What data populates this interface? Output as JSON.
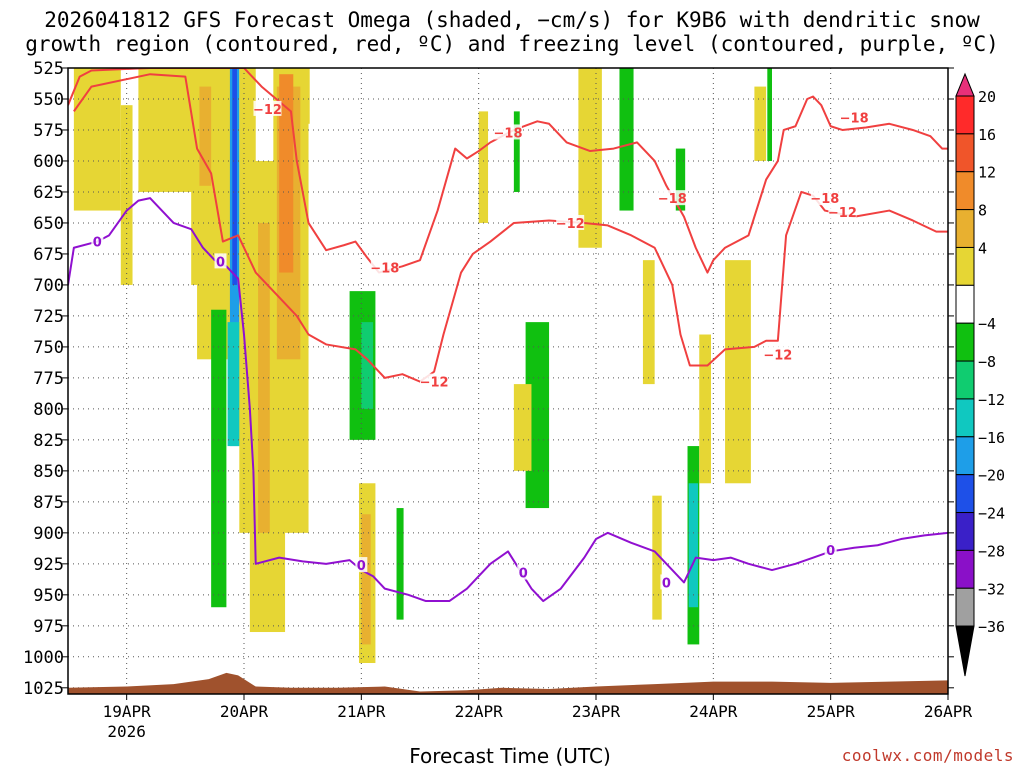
{
  "title_line1": "2026041812 GFS Forecast Omega (shaded, −cm/s) for K9B6 with dendritic snow",
  "title_line2": "growth region (contoured, red, ºC) and freezing level (contoured, purple, ºC)",
  "credit": "coolwx.com/models",
  "colors": {
    "dgz": "#f04040",
    "freezing": "#9010d0",
    "terrain": "#a0522d",
    "grid": "#555555"
  },
  "chart_data": {
    "type": "heatmap",
    "xlabel": "Forecast Time (UTC)",
    "ylabel": "",
    "x_ticks": [
      {
        "label": "19APR",
        "sub": "2026",
        "day": 19
      },
      {
        "label": "20APR",
        "sub": "",
        "day": 20
      },
      {
        "label": "21APR",
        "sub": "",
        "day": 21
      },
      {
        "label": "22APR",
        "sub": "",
        "day": 22
      },
      {
        "label": "23APR",
        "sub": "",
        "day": 23
      },
      {
        "label": "24APR",
        "sub": "",
        "day": 24
      },
      {
        "label": "25APR",
        "sub": "",
        "day": 25
      },
      {
        "label": "26APR",
        "sub": "",
        "day": 26
      }
    ],
    "xlim": [
      18.5,
      26.0
    ],
    "ylim": [
      1030,
      525
    ],
    "y_ticks": [
      525,
      550,
      575,
      600,
      625,
      650,
      675,
      700,
      725,
      750,
      775,
      800,
      825,
      850,
      875,
      900,
      925,
      950,
      975,
      1000,
      1025
    ],
    "colorbar": [
      {
        "label": "20",
        "color": "#ff2a2a"
      },
      {
        "label": "16",
        "color": "#f0552a"
      },
      {
        "label": "12",
        "color": "#f08b2a"
      },
      {
        "label": "8",
        "color": "#e8b030"
      },
      {
        "label": "4",
        "color": "#e6d634"
      },
      {
        "label": "",
        "color": "#ffffff"
      },
      {
        "label": "−4",
        "color": "#10c010"
      },
      {
        "label": "−8",
        "color": "#10cc70"
      },
      {
        "label": "−12",
        "color": "#10c8c0"
      },
      {
        "label": "−16",
        "color": "#1e9ee8"
      },
      {
        "label": "−20",
        "color": "#1e50e8"
      },
      {
        "label": "−24",
        "color": "#3a20c8"
      },
      {
        "label": "−28",
        "color": "#8a10c8"
      },
      {
        "label": "−32",
        "color": "#a0a0a0"
      },
      {
        "label": "−36",
        "color": "#000000"
      }
    ],
    "omega_patches": [
      {
        "x0": 18.55,
        "x1": 18.95,
        "p0": 525,
        "p1": 640,
        "level": 4
      },
      {
        "x0": 18.95,
        "x1": 19.05,
        "p0": 555,
        "p1": 700,
        "level": 4
      },
      {
        "x0": 19.1,
        "x1": 19.6,
        "p0": 525,
        "p1": 625,
        "level": 4
      },
      {
        "x0": 19.55,
        "x1": 19.75,
        "p0": 525,
        "p1": 700,
        "level": 4
      },
      {
        "x0": 19.6,
        "x1": 19.95,
        "p0": 525,
        "p1": 760,
        "level": 4
      },
      {
        "x0": 19.62,
        "x1": 19.72,
        "p0": 540,
        "p1": 620,
        "level": 8
      },
      {
        "x0": 19.72,
        "x1": 19.85,
        "p0": 720,
        "p1": 960,
        "level": -4
      },
      {
        "x0": 19.88,
        "x1": 19.96,
        "p0": 525,
        "p1": 830,
        "level": -16
      },
      {
        "x0": 19.9,
        "x1": 19.94,
        "p0": 525,
        "p1": 700,
        "level": -20
      },
      {
        "x0": 19.86,
        "x1": 19.98,
        "p0": 730,
        "p1": 830,
        "level": -12
      },
      {
        "x0": 19.96,
        "x1": 20.1,
        "p0": 525,
        "p1": 900,
        "level": 4
      },
      {
        "x0": 20.05,
        "x1": 20.35,
        "p0": 600,
        "p1": 980,
        "level": 4
      },
      {
        "x0": 20.12,
        "x1": 20.22,
        "p0": 650,
        "p1": 900,
        "level": 8
      },
      {
        "x0": 20.25,
        "x1": 20.55,
        "p0": 525,
        "p1": 900,
        "level": 4
      },
      {
        "x0": 20.28,
        "x1": 20.48,
        "p0": 540,
        "p1": 760,
        "level": 8
      },
      {
        "x0": 20.3,
        "x1": 20.42,
        "p0": 530,
        "p1": 690,
        "level": 12
      },
      {
        "x0": 20.5,
        "x1": 20.56,
        "p0": 525,
        "p1": 570,
        "level": 4
      },
      {
        "x0": 20.9,
        "x1": 21.12,
        "p0": 705,
        "p1": 825,
        "level": -4
      },
      {
        "x0": 21.0,
        "x1": 21.1,
        "p0": 730,
        "p1": 800,
        "level": -8
      },
      {
        "x0": 20.98,
        "x1": 21.12,
        "p0": 860,
        "p1": 1005,
        "level": 4
      },
      {
        "x0": 21.0,
        "x1": 21.08,
        "p0": 885,
        "p1": 990,
        "level": 8
      },
      {
        "x0": 21.3,
        "x1": 21.36,
        "p0": 880,
        "p1": 970,
        "level": -4
      },
      {
        "x0": 22.0,
        "x1": 22.08,
        "p0": 560,
        "p1": 650,
        "level": 4
      },
      {
        "x0": 22.3,
        "x1": 22.35,
        "p0": 560,
        "p1": 625,
        "level": -4
      },
      {
        "x0": 22.4,
        "x1": 22.6,
        "p0": 730,
        "p1": 880,
        "level": -4
      },
      {
        "x0": 22.3,
        "x1": 22.45,
        "p0": 780,
        "p1": 850,
        "level": 4
      },
      {
        "x0": 22.85,
        "x1": 23.05,
        "p0": 525,
        "p1": 670,
        "level": 4
      },
      {
        "x0": 23.2,
        "x1": 23.32,
        "p0": 525,
        "p1": 640,
        "level": -4
      },
      {
        "x0": 23.4,
        "x1": 23.5,
        "p0": 680,
        "p1": 780,
        "level": 4
      },
      {
        "x0": 23.48,
        "x1": 23.56,
        "p0": 870,
        "p1": 970,
        "level": 4
      },
      {
        "x0": 23.68,
        "x1": 23.76,
        "p0": 590,
        "p1": 640,
        "level": -4
      },
      {
        "x0": 23.78,
        "x1": 23.88,
        "p0": 830,
        "p1": 990,
        "level": -4
      },
      {
        "x0": 23.79,
        "x1": 23.87,
        "p0": 860,
        "p1": 960,
        "level": -12
      },
      {
        "x0": 23.88,
        "x1": 23.98,
        "p0": 740,
        "p1": 860,
        "level": 4
      },
      {
        "x0": 24.1,
        "x1": 24.32,
        "p0": 680,
        "p1": 860,
        "level": 4
      },
      {
        "x0": 24.35,
        "x1": 24.45,
        "p0": 540,
        "p1": 600,
        "level": 4
      },
      {
        "x0": 24.46,
        "x1": 24.5,
        "p0": 525,
        "p1": 600,
        "level": -4
      }
    ],
    "contours": [
      {
        "name": "dgz-upper",
        "label": "−18",
        "kind": "dgz",
        "points": [
          [
            18.5,
            555
          ],
          [
            18.6,
            532
          ],
          [
            18.7,
            527
          ],
          [
            19.2,
            525
          ],
          [
            20.0,
            525
          ],
          [
            20.15,
            540
          ],
          [
            20.4,
            560
          ],
          [
            20.45,
            600
          ],
          [
            20.55,
            650
          ],
          [
            20.7,
            672
          ],
          [
            20.85,
            668
          ],
          [
            20.95,
            665
          ],
          [
            21.05,
            678
          ],
          [
            21.15,
            690
          ],
          [
            21.35,
            685
          ],
          [
            21.5,
            680
          ],
          [
            21.65,
            640
          ],
          [
            21.8,
            590
          ],
          [
            21.9,
            598
          ],
          [
            22.0,
            592
          ],
          [
            22.1,
            585
          ],
          [
            22.3,
            575
          ],
          [
            22.5,
            568
          ],
          [
            22.6,
            570
          ],
          [
            22.75,
            585
          ],
          [
            22.95,
            592
          ],
          [
            23.15,
            590
          ],
          [
            23.35,
            585
          ],
          [
            23.5,
            600
          ],
          [
            23.6,
            620
          ],
          [
            23.75,
            645
          ],
          [
            23.85,
            670
          ],
          [
            23.95,
            690
          ],
          [
            24.0,
            680
          ],
          [
            24.1,
            670
          ],
          [
            24.3,
            660
          ],
          [
            24.45,
            615
          ],
          [
            24.55,
            600
          ],
          [
            24.6,
            575
          ],
          [
            24.7,
            572
          ],
          [
            24.8,
            550
          ],
          [
            24.85,
            548
          ],
          [
            24.92,
            555
          ],
          [
            25.0,
            572
          ],
          [
            25.1,
            575
          ],
          [
            25.3,
            573
          ],
          [
            25.5,
            570
          ],
          [
            25.7,
            575
          ],
          [
            25.85,
            580
          ],
          [
            25.95,
            590
          ],
          [
            26.0,
            590
          ]
        ]
      },
      {
        "name": "dgz-lower",
        "label": "−12",
        "kind": "dgz",
        "points": [
          [
            18.55,
            560
          ],
          [
            18.7,
            540
          ],
          [
            19.2,
            530
          ],
          [
            19.5,
            532
          ],
          [
            19.6,
            590
          ],
          [
            19.72,
            610
          ],
          [
            19.82,
            665
          ],
          [
            19.95,
            660
          ],
          [
            20.1,
            690
          ],
          [
            20.2,
            700
          ],
          [
            20.3,
            710
          ],
          [
            20.45,
            725
          ],
          [
            20.55,
            740
          ],
          [
            20.7,
            748
          ],
          [
            20.95,
            752
          ],
          [
            21.05,
            760
          ],
          [
            21.2,
            775
          ],
          [
            21.35,
            772
          ],
          [
            21.5,
            778
          ],
          [
            21.62,
            770
          ],
          [
            21.7,
            740
          ],
          [
            21.85,
            690
          ],
          [
            21.95,
            675
          ],
          [
            22.1,
            665
          ],
          [
            22.3,
            650
          ],
          [
            22.6,
            648
          ],
          [
            22.9,
            650
          ],
          [
            23.1,
            652
          ],
          [
            23.3,
            660
          ],
          [
            23.5,
            670
          ],
          [
            23.65,
            700
          ],
          [
            23.72,
            740
          ],
          [
            23.8,
            765
          ],
          [
            23.95,
            765
          ],
          [
            24.1,
            752
          ],
          [
            24.35,
            750
          ],
          [
            24.45,
            745
          ],
          [
            24.55,
            745
          ],
          [
            24.62,
            660
          ],
          [
            24.75,
            625
          ],
          [
            24.85,
            628
          ],
          [
            24.95,
            640
          ],
          [
            25.2,
            645
          ],
          [
            25.5,
            640
          ],
          [
            25.7,
            648
          ],
          [
            25.9,
            657
          ],
          [
            26.0,
            657
          ]
        ]
      },
      {
        "name": "freezing-upper",
        "label": "0",
        "kind": "freezing",
        "points": [
          [
            18.5,
            700
          ],
          [
            18.55,
            670
          ],
          [
            18.75,
            665
          ],
          [
            18.85,
            660
          ],
          [
            19.0,
            640
          ],
          [
            19.1,
            632
          ],
          [
            19.2,
            630
          ],
          [
            19.3,
            640
          ],
          [
            19.4,
            650
          ],
          [
            19.55,
            655
          ],
          [
            19.65,
            670
          ],
          [
            19.75,
            680
          ],
          [
            19.85,
            685
          ],
          [
            19.95,
            695
          ],
          [
            20.0,
            740
          ],
          [
            20.05,
            800
          ],
          [
            20.08,
            850
          ]
        ]
      },
      {
        "name": "freezing-lower",
        "label": "0",
        "kind": "freezing",
        "points": [
          [
            20.08,
            850
          ],
          [
            20.1,
            925
          ],
          [
            20.3,
            920
          ],
          [
            20.5,
            923
          ],
          [
            20.7,
            925
          ],
          [
            20.9,
            922
          ],
          [
            21.0,
            930
          ],
          [
            21.1,
            935
          ],
          [
            21.2,
            945
          ],
          [
            21.4,
            950
          ],
          [
            21.55,
            955
          ],
          [
            21.75,
            955
          ],
          [
            21.9,
            945
          ],
          [
            22.0,
            935
          ],
          [
            22.1,
            925
          ],
          [
            22.25,
            915
          ],
          [
            22.35,
            930
          ],
          [
            22.45,
            945
          ],
          [
            22.55,
            955
          ],
          [
            22.7,
            945
          ],
          [
            22.9,
            920
          ],
          [
            23.0,
            905
          ],
          [
            23.1,
            900
          ],
          [
            23.3,
            908
          ],
          [
            23.5,
            915
          ],
          [
            23.6,
            925
          ],
          [
            23.75,
            940
          ],
          [
            23.85,
            920
          ],
          [
            24.0,
            922
          ],
          [
            24.15,
            920
          ],
          [
            24.3,
            925
          ],
          [
            24.5,
            930
          ],
          [
            24.7,
            925
          ],
          [
            24.85,
            920
          ],
          [
            25.0,
            915
          ],
          [
            25.2,
            912
          ],
          [
            25.4,
            910
          ],
          [
            25.6,
            905
          ],
          [
            25.8,
            902
          ],
          [
            26.0,
            900
          ]
        ]
      }
    ],
    "contour_labels": [
      {
        "text": "−12",
        "x": 20.2,
        "p": 558,
        "kind": "dgz"
      },
      {
        "text": "−18",
        "x": 21.2,
        "p": 686,
        "kind": "dgz"
      },
      {
        "text": "−12",
        "x": 21.62,
        "p": 778,
        "kind": "dgz"
      },
      {
        "text": "−18",
        "x": 22.25,
        "p": 577,
        "kind": "dgz"
      },
      {
        "text": "−12",
        "x": 22.78,
        "p": 650,
        "kind": "dgz"
      },
      {
        "text": "−18",
        "x": 23.65,
        "p": 630,
        "kind": "dgz"
      },
      {
        "text": "−12",
        "x": 24.55,
        "p": 756,
        "kind": "dgz"
      },
      {
        "text": "−18",
        "x": 24.95,
        "p": 630,
        "kind": "dgz"
      },
      {
        "text": "−18",
        "x": 25.2,
        "p": 565,
        "kind": "dgz"
      },
      {
        "text": "−12",
        "x": 25.1,
        "p": 641,
        "kind": "dgz"
      },
      {
        "text": "0",
        "x": 18.75,
        "p": 665,
        "kind": "freezing"
      },
      {
        "text": "0",
        "x": 19.8,
        "p": 681,
        "kind": "freezing"
      },
      {
        "text": "0",
        "x": 21.0,
        "p": 926,
        "kind": "freezing"
      },
      {
        "text": "0",
        "x": 22.38,
        "p": 932,
        "kind": "freezing"
      },
      {
        "text": "0",
        "x": 23.6,
        "p": 940,
        "kind": "freezing"
      },
      {
        "text": "0",
        "x": 25.0,
        "p": 914,
        "kind": "freezing"
      }
    ],
    "terrain": [
      [
        18.5,
        1030
      ],
      [
        18.5,
        1025
      ],
      [
        19.0,
        1024
      ],
      [
        19.4,
        1022
      ],
      [
        19.7,
        1018
      ],
      [
        19.85,
        1013
      ],
      [
        19.95,
        1015
      ],
      [
        20.1,
        1024
      ],
      [
        20.4,
        1025
      ],
      [
        20.8,
        1025
      ],
      [
        21.2,
        1024
      ],
      [
        21.5,
        1028
      ],
      [
        21.9,
        1027
      ],
      [
        22.2,
        1025
      ],
      [
        22.6,
        1026
      ],
      [
        23.0,
        1024
      ],
      [
        23.5,
        1022
      ],
      [
        24.0,
        1020
      ],
      [
        24.5,
        1020
      ],
      [
        25.0,
        1021
      ],
      [
        25.5,
        1020
      ],
      [
        26.0,
        1019
      ],
      [
        26.0,
        1030
      ]
    ]
  }
}
